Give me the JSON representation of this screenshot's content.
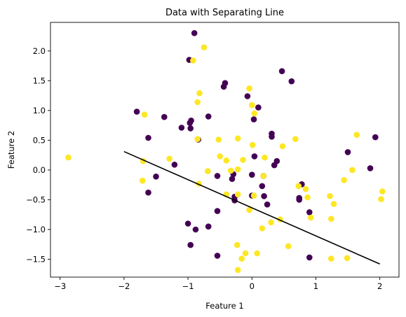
{
  "chart_data": {
    "type": "scatter",
    "title": "Data with Separating Line",
    "xlabel": "Feature 1",
    "ylabel": "Feature 2",
    "xlim": [
      -3.15,
      2.3
    ],
    "ylim": [
      -1.8,
      2.48
    ],
    "xticks": [
      -3,
      -2,
      -1,
      0,
      1,
      2
    ],
    "yticks": [
      -1.5,
      -1.0,
      -0.5,
      0.0,
      0.5,
      1.0,
      1.5,
      2.0
    ],
    "xtick_labels": [
      "−3",
      "−2",
      "−1",
      "0",
      "1",
      "2"
    ],
    "ytick_labels": [
      "−1.5",
      "−1.0",
      "−0.5",
      "0.0",
      "0.5",
      "1.0",
      "1.5",
      "2.0"
    ],
    "grid": false,
    "colors": {
      "class0": "#440154",
      "class1": "#fde725",
      "line": "#000000"
    },
    "series": [
      {
        "color": "#440154",
        "points": [
          [
            -0.9,
            2.3
          ],
          [
            -0.98,
            1.85
          ],
          [
            -1.8,
            0.98
          ],
          [
            -1.37,
            0.89
          ],
          [
            -0.95,
            0.83
          ],
          [
            -0.97,
            0.79
          ],
          [
            -1.1,
            0.71
          ],
          [
            -0.96,
            0.7
          ],
          [
            -0.68,
            0.9
          ],
          [
            -0.42,
            1.46
          ],
          [
            -0.44,
            1.4
          ],
          [
            0.47,
            1.66
          ],
          [
            0.62,
            1.49
          ],
          [
            -0.07,
            1.24
          ],
          [
            0.1,
            1.05
          ],
          [
            0.03,
            0.85
          ],
          [
            -1.62,
            0.54
          ],
          [
            -0.84,
            0.51
          ],
          [
            0.31,
            0.61
          ],
          [
            0.31,
            0.56
          ],
          [
            0.39,
            0.15
          ],
          [
            0.04,
            0.23
          ],
          [
            -1.21,
            0.09
          ],
          [
            -1.5,
            -0.11
          ],
          [
            -1.62,
            -0.38
          ],
          [
            -0.29,
            -0.07
          ],
          [
            -0.31,
            -0.15
          ],
          [
            0.18,
            -0.1
          ],
          [
            0.35,
            0.08
          ],
          [
            0.16,
            -0.27
          ],
          [
            -0.54,
            -0.1
          ],
          [
            0.0,
            -0.08
          ],
          [
            0.0,
            -0.43
          ],
          [
            0.19,
            -0.44
          ],
          [
            0.24,
            -0.58
          ],
          [
            -0.27,
            -0.51
          ],
          [
            -0.27,
            -0.45
          ],
          [
            -0.54,
            -0.69
          ],
          [
            0.74,
            -0.47
          ],
          [
            0.74,
            -0.5
          ],
          [
            0.78,
            -0.24
          ],
          [
            0.9,
            -0.71
          ],
          [
            -1.0,
            -0.9
          ],
          [
            -0.68,
            -0.95
          ],
          [
            -0.88,
            -1.0
          ],
          [
            -0.96,
            -1.26
          ],
          [
            -0.54,
            -1.44
          ],
          [
            0.9,
            -1.47
          ],
          [
            1.93,
            0.55
          ],
          [
            1.5,
            0.3
          ],
          [
            1.85,
            0.03
          ]
        ]
      },
      {
        "color": "#fde725",
        "points": [
          [
            -0.75,
            2.06
          ],
          [
            -0.92,
            1.84
          ],
          [
            -0.82,
            1.29
          ],
          [
            -0.85,
            1.14
          ],
          [
            -1.68,
            0.93
          ],
          [
            -0.04,
            1.37
          ],
          [
            0.0,
            1.09
          ],
          [
            0.04,
            0.95
          ],
          [
            -0.85,
            0.52
          ],
          [
            -0.52,
            0.51
          ],
          [
            0.01,
            0.42
          ],
          [
            0.48,
            0.4
          ],
          [
            0.68,
            0.52
          ],
          [
            -0.5,
            0.23
          ],
          [
            -0.22,
            0.53
          ],
          [
            -0.4,
            0.16
          ],
          [
            -0.14,
            0.17
          ],
          [
            0.2,
            0.21
          ],
          [
            -1.29,
            0.19
          ],
          [
            -1.7,
            0.15
          ],
          [
            -2.87,
            0.21
          ],
          [
            -0.69,
            -0.02
          ],
          [
            -0.22,
            0.01
          ],
          [
            -0.33,
            -0.01
          ],
          [
            0.18,
            -0.1
          ],
          [
            -1.71,
            -0.18
          ],
          [
            -0.83,
            -0.23
          ],
          [
            0.73,
            -0.27
          ],
          [
            0.84,
            -0.32
          ],
          [
            1.28,
            -0.57
          ],
          [
            -0.4,
            -0.41
          ],
          [
            -0.22,
            -0.41
          ],
          [
            0.03,
            -0.43
          ],
          [
            0.87,
            -0.46
          ],
          [
            1.57,
            0.0
          ],
          [
            1.64,
            0.59
          ],
          [
            2.04,
            -0.36
          ],
          [
            2.02,
            -0.49
          ],
          [
            1.44,
            -0.17
          ],
          [
            -0.04,
            -0.67
          ],
          [
            0.44,
            -0.83
          ],
          [
            0.92,
            -0.8
          ],
          [
            0.3,
            -0.88
          ],
          [
            0.16,
            -0.98
          ],
          [
            1.22,
            -0.44
          ],
          [
            1.24,
            -0.82
          ],
          [
            -0.23,
            -1.26
          ],
          [
            0.57,
            -1.28
          ],
          [
            -0.1,
            -1.4
          ],
          [
            0.08,
            -1.4
          ],
          [
            -0.16,
            -1.49
          ],
          [
            -0.22,
            -1.68
          ],
          [
            1.24,
            -1.49
          ],
          [
            1.49,
            -1.48
          ]
        ]
      }
    ],
    "line": {
      "x": [
        -2.0,
        2.0
      ],
      "y": [
        0.31,
        -1.58
      ]
    }
  }
}
